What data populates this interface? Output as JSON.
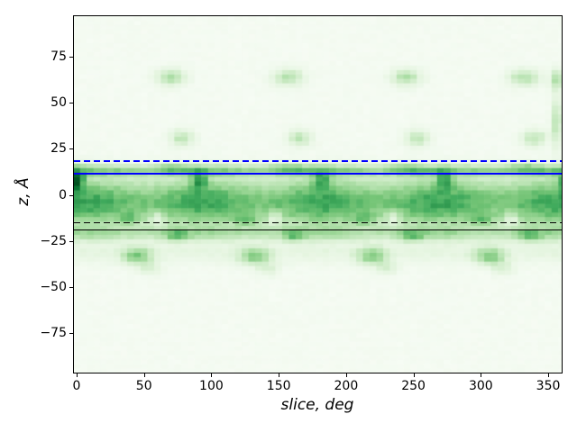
{
  "chart_data": {
    "type": "heatmap",
    "title": "",
    "xlabel": "slice, deg",
    "ylabel": "z, Å",
    "xlim": [
      -2,
      360
    ],
    "ylim": [
      -96.5,
      97
    ],
    "x_ticks": [
      0,
      50,
      100,
      150,
      200,
      250,
      300,
      350
    ],
    "y_ticks": [
      -75,
      -50,
      -25,
      0,
      25,
      50,
      75
    ],
    "grid_lines": "off",
    "legend": "none",
    "colormap": {
      "name": "Greens",
      "stops": [
        [
          0.0,
          "#f7fcf5"
        ],
        [
          0.125,
          "#e5f5e0"
        ],
        [
          0.25,
          "#c7e9c0"
        ],
        [
          0.375,
          "#a1d99b"
        ],
        [
          0.5,
          "#74c476"
        ],
        [
          0.625,
          "#41ab5d"
        ],
        [
          0.75,
          "#238b45"
        ],
        [
          0.875,
          "#006d2c"
        ],
        [
          1.0,
          "#00441b"
        ]
      ]
    },
    "hlines": [
      {
        "name": "hline-blue-dashed",
        "y": 18.2,
        "color": "#0000ff",
        "style": "dashed",
        "width": 2
      },
      {
        "name": "hline-blue-solid",
        "y": 11.6,
        "color": "#0000ff",
        "style": "solid",
        "width": 2
      },
      {
        "name": "hline-black-dashed",
        "y": -15.2,
        "color": "#000000",
        "style": "dashed",
        "width": 1.5
      },
      {
        "name": "hline-black-solid",
        "y": -19.1,
        "color": "#000000",
        "style": "solid",
        "width": 1.5
      }
    ],
    "bins": {
      "x_start": -2.5,
      "x_bin_deg": 5,
      "y_start": -96.5,
      "y_bin_A": 2.42
    },
    "density_model": {
      "background": 0.02,
      "noise": 0.05,
      "modulation": {
        "amp": 0.15,
        "period": 87.3,
        "phase": 8
      },
      "bands": [
        {
          "amp": 0.55,
          "z": -4,
          "sz": 13
        },
        {
          "amp": 0.33,
          "z": 13.5,
          "sz": 3
        },
        {
          "amp": 0.22,
          "z": -21,
          "sz": 3.5
        },
        {
          "amp": 0.08,
          "z": -31,
          "sz": 6
        }
      ],
      "blobs": [
        {
          "start": 70,
          "period": 87.3,
          "count": 4,
          "z": 64,
          "amp": 0.3,
          "sx": 11,
          "sz": 4.5
        },
        {
          "start": 78,
          "period": 87.3,
          "count": 4,
          "z": 31,
          "amp": 0.26,
          "sx": 9,
          "sz": 4.5
        },
        {
          "start": 357,
          "period": 0,
          "count": 1,
          "z": 63,
          "amp": 0.35,
          "sx": 5,
          "sz": 5
        },
        {
          "start": 357,
          "period": 0,
          "count": 1,
          "z": 40,
          "amp": 0.3,
          "sx": 4,
          "sz": 14
        },
        {
          "start": 0,
          "period": 91,
          "count": 5,
          "z": 8,
          "amp": 0.42,
          "sx": 6,
          "sz": 5
        },
        {
          "start": -1,
          "period": 0,
          "count": 1,
          "z": 9,
          "amp": 0.3,
          "sx": 5,
          "sz": 6
        },
        {
          "start": 70,
          "period": 87.3,
          "count": 4,
          "z": 15,
          "amp": 0.2,
          "sx": 12,
          "sz": 2.5
        },
        {
          "start": 38,
          "period": 87.5,
          "count": 4,
          "z": -13,
          "amp": 0.25,
          "sx": 7,
          "sz": 3
        },
        {
          "start": 60,
          "period": 87.5,
          "count": 4,
          "z": -12,
          "amp": -0.22,
          "sx": 5,
          "sz": 3.5
        },
        {
          "start": 74,
          "period": 87.5,
          "count": 4,
          "z": -22,
          "amp": 0.3,
          "sx": 8,
          "sz": 3
        },
        {
          "start": 45,
          "period": 87.3,
          "count": 4,
          "z": -33,
          "amp": 0.4,
          "sx": 11,
          "sz": 4.5
        },
        {
          "start": 55,
          "period": 87.3,
          "count": 4,
          "z": -40,
          "amp": 0.15,
          "sx": 8,
          "sz": 3.5
        }
      ]
    }
  }
}
